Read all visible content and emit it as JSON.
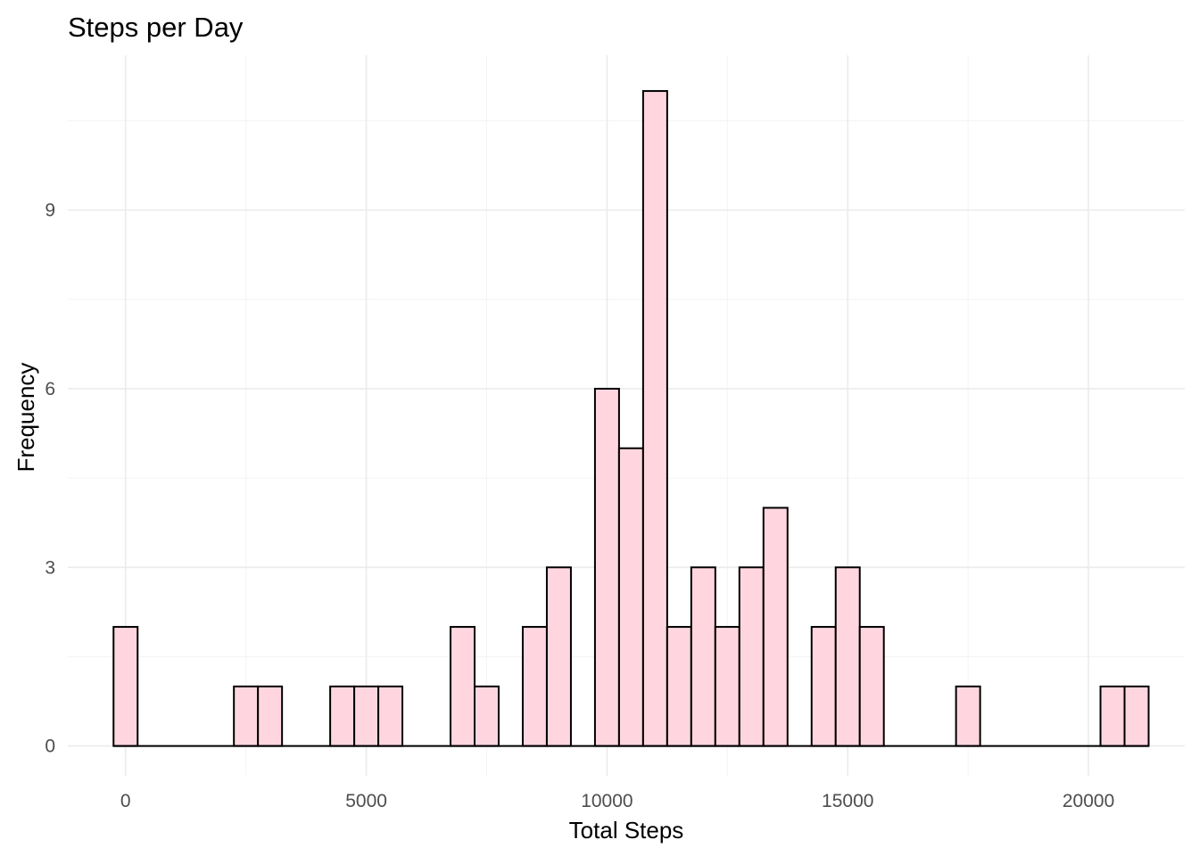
{
  "chart_data": {
    "type": "bar",
    "title": "Steps per Day",
    "xlabel": "Total Steps",
    "ylabel": "Frequency",
    "bin_width": 500,
    "x": [
      0,
      2500,
      3000,
      4500,
      5000,
      5500,
      7000,
      7500,
      8500,
      9000,
      10000,
      10500,
      11000,
      11500,
      12000,
      12500,
      13000,
      13500,
      14500,
      15000,
      15500,
      17500,
      20500,
      21000
    ],
    "values": [
      2,
      1,
      1,
      1,
      1,
      1,
      2,
      1,
      2,
      3,
      6,
      5,
      11,
      2,
      3,
      2,
      3,
      4,
      2,
      3,
      2,
      1,
      1,
      1
    ],
    "xlim": [
      -1200,
      22000
    ],
    "ylim": [
      -0.5,
      11.6
    ],
    "x_ticks": [
      "0",
      "5000",
      "10000",
      "15000",
      "20000"
    ],
    "y_ticks": [
      "0",
      "3",
      "6",
      "9"
    ],
    "grid": true,
    "colors": {
      "fill": "#ffd6df",
      "outline": "#000000",
      "grid": "#ebebeb"
    }
  }
}
